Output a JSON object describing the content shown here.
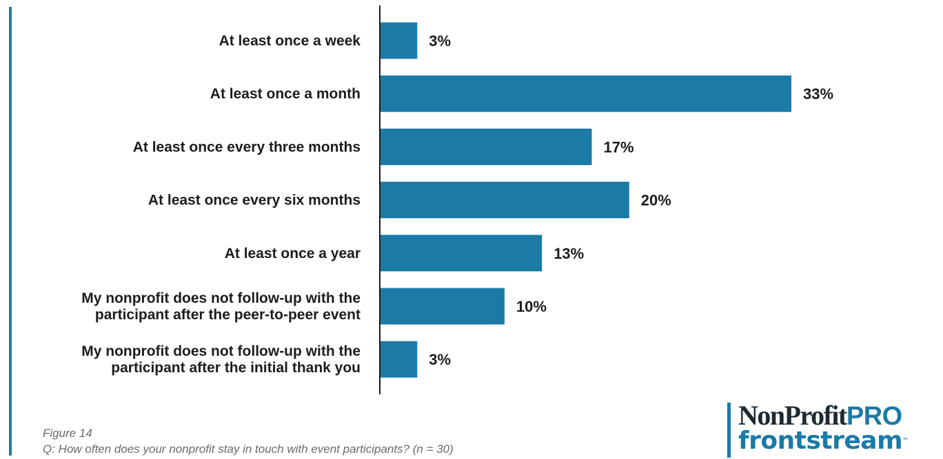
{
  "chart_data": {
    "type": "bar",
    "orientation": "horizontal",
    "categories": [
      [
        "At least once a week"
      ],
      [
        "At least once a month"
      ],
      [
        "At least once every three months"
      ],
      [
        "At least once every six months"
      ],
      [
        "At least once a year"
      ],
      [
        "My nonprofit does not follow-up with the",
        "participant after the peer-to-peer event"
      ],
      [
        "My nonprofit does not follow-up with the",
        "participant after the initial thank you"
      ]
    ],
    "values": [
      3,
      33,
      17,
      20,
      13,
      10,
      3
    ],
    "value_labels": [
      "3%",
      "33%",
      "17%",
      "20%",
      "13%",
      "10%",
      "3%"
    ],
    "unit": "%",
    "xlim": [
      0,
      33
    ],
    "grid": false,
    "legend": "none",
    "bar_color": "#1b7aa6",
    "axis_color": "#1a1a1a"
  },
  "caption": {
    "figure": "Figure 14",
    "question": "Q: How often does your nonprofit stay in touch with event participants? (n = 30)"
  },
  "logo": {
    "line1_main": "NonProfit",
    "line1_accent": "PRO",
    "line2": "frontstream",
    "tm": "™",
    "dark_color": "#1e2a33",
    "accent_color": "#1b7aa6"
  },
  "colors": {
    "left_rule": "#1b7aa6",
    "caption_text": "#6a6a6a"
  }
}
